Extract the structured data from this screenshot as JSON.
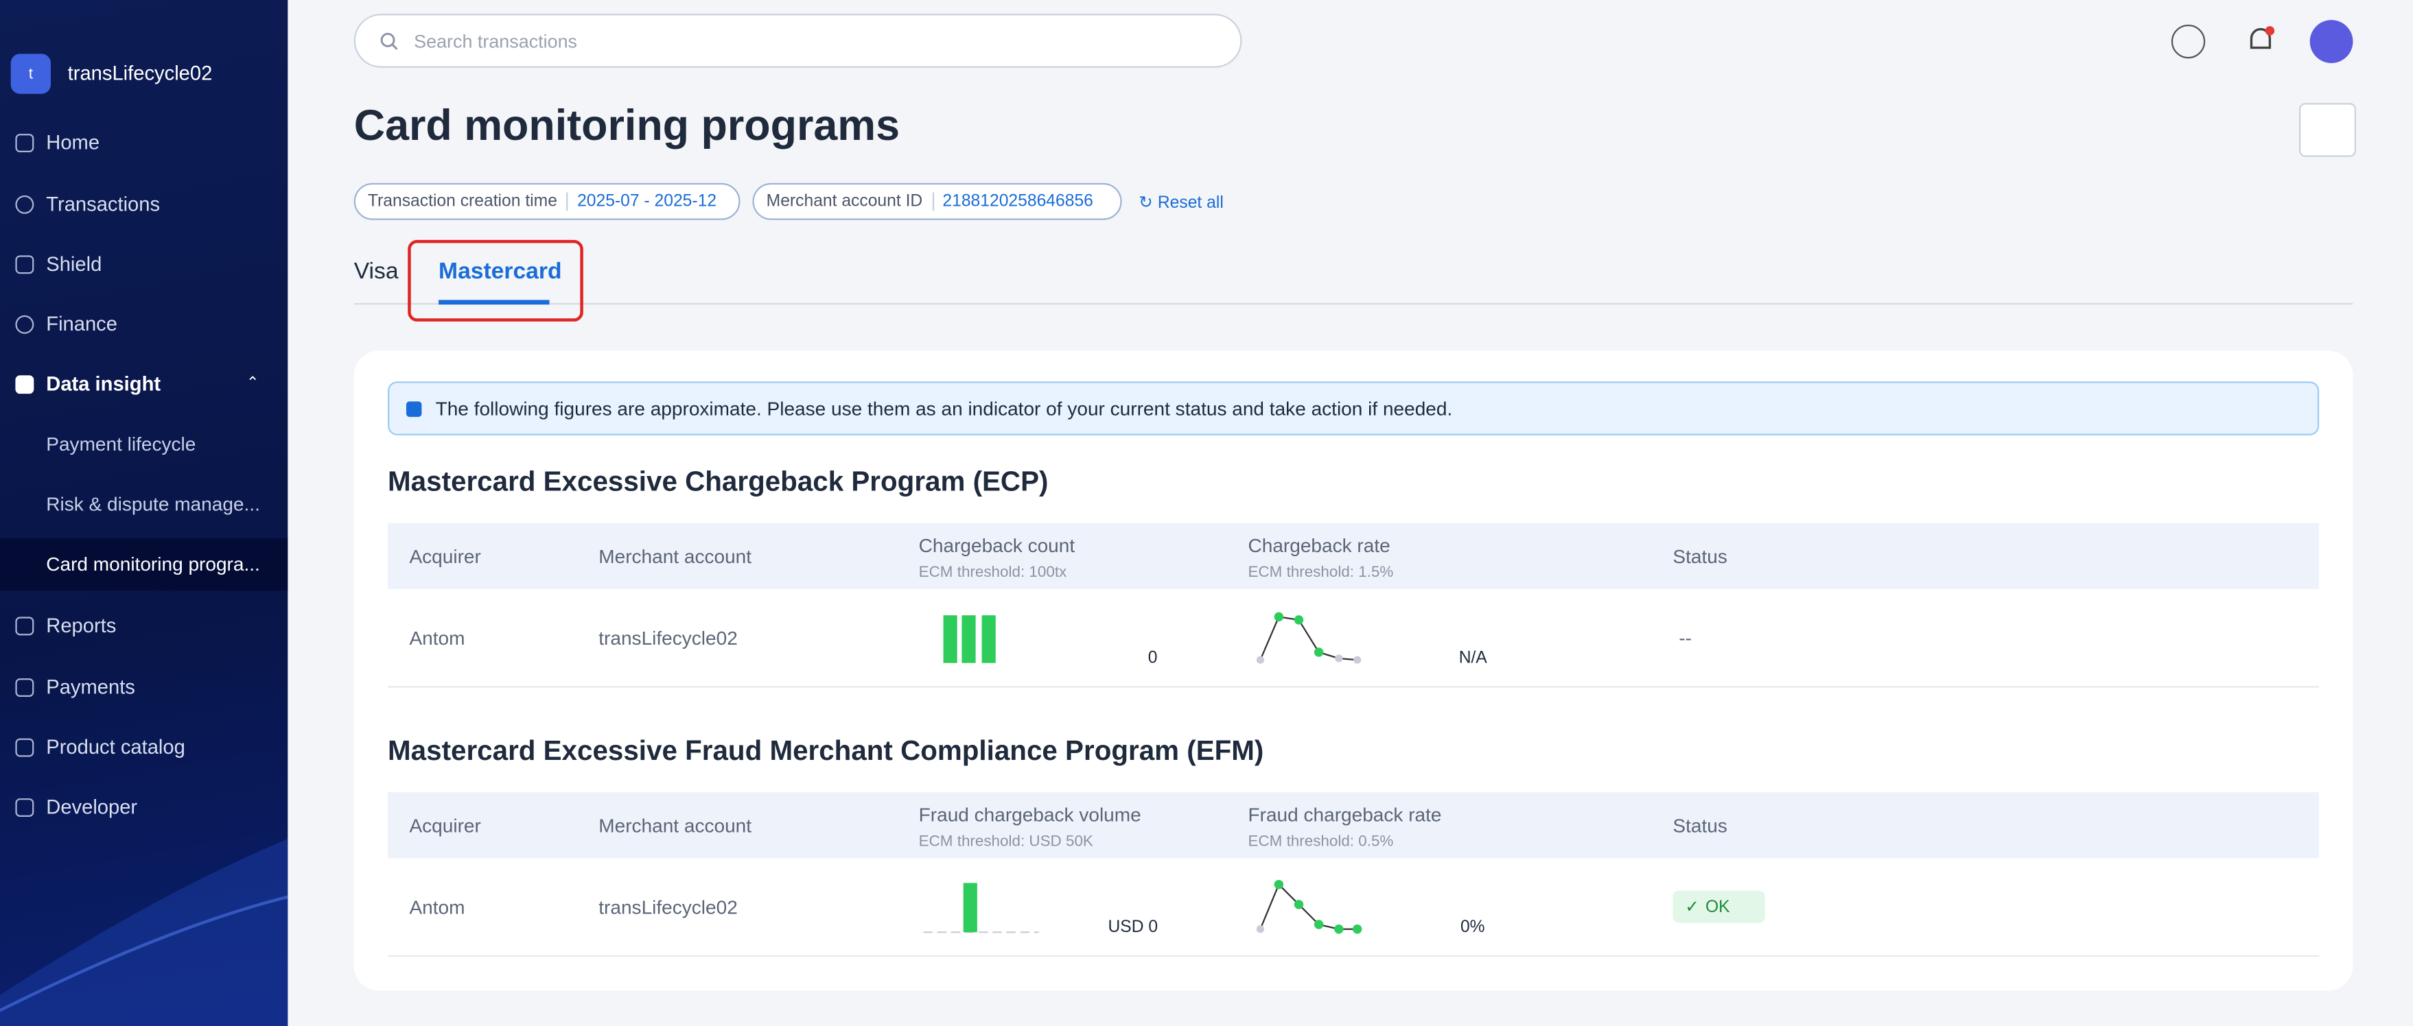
{
  "sidebar": {
    "avatar_letter": "t",
    "account": "transLifecycle02",
    "nav": [
      "Home",
      "Transactions",
      "Shield",
      "Finance",
      "Data insight"
    ],
    "subnav": [
      "Payment lifecycle",
      "Risk & dispute manage...",
      "Card monitoring progra..."
    ],
    "nav_bottom": [
      "Reports",
      "Payments",
      "Product catalog",
      "Developer"
    ]
  },
  "search_placeholder": "Search transactions",
  "page_title": "Card monitoring programs",
  "filters": [
    {
      "label": "Transaction creation time",
      "value": "2025-07 - 2025-12"
    },
    {
      "label": "Merchant account ID",
      "value": "2188120258646856"
    }
  ],
  "reset": "Reset all",
  "tabs": [
    "Visa",
    "Mastercard"
  ],
  "notice": "The following figures are approximate. Please use them as an indicator of your current status and take action if needed.",
  "sections": [
    {
      "title": "Mastercard Excessive Chargeback Program (ECP)",
      "columns": [
        {
          "label": "Acquirer"
        },
        {
          "label": "Merchant account"
        },
        {
          "label": "Chargeback count",
          "sub": "ECM threshold: 100tx"
        },
        {
          "label": "Chargeback rate",
          "sub": "ECM threshold: 1.5%"
        },
        {
          "label": "Status"
        }
      ],
      "row": {
        "acquirer": "Antom",
        "merchant": "transLifecycle02",
        "count": "0",
        "rate": "N/A",
        "status": "--"
      }
    },
    {
      "title": "Mastercard Excessive Fraud Merchant Compliance Program (EFM)",
      "columns": [
        {
          "label": "Acquirer"
        },
        {
          "label": "Merchant account"
        },
        {
          "label": "Fraud chargeback volume",
          "sub": "ECM threshold: USD 50K"
        },
        {
          "label": "Fraud chargeback rate",
          "sub": "ECM threshold: 0.5%"
        },
        {
          "label": "Status"
        }
      ],
      "row": {
        "acquirer": "Antom",
        "merchant": "transLifecycle02",
        "count": "USD 0",
        "rate": "0%",
        "status": "OK"
      }
    }
  ]
}
